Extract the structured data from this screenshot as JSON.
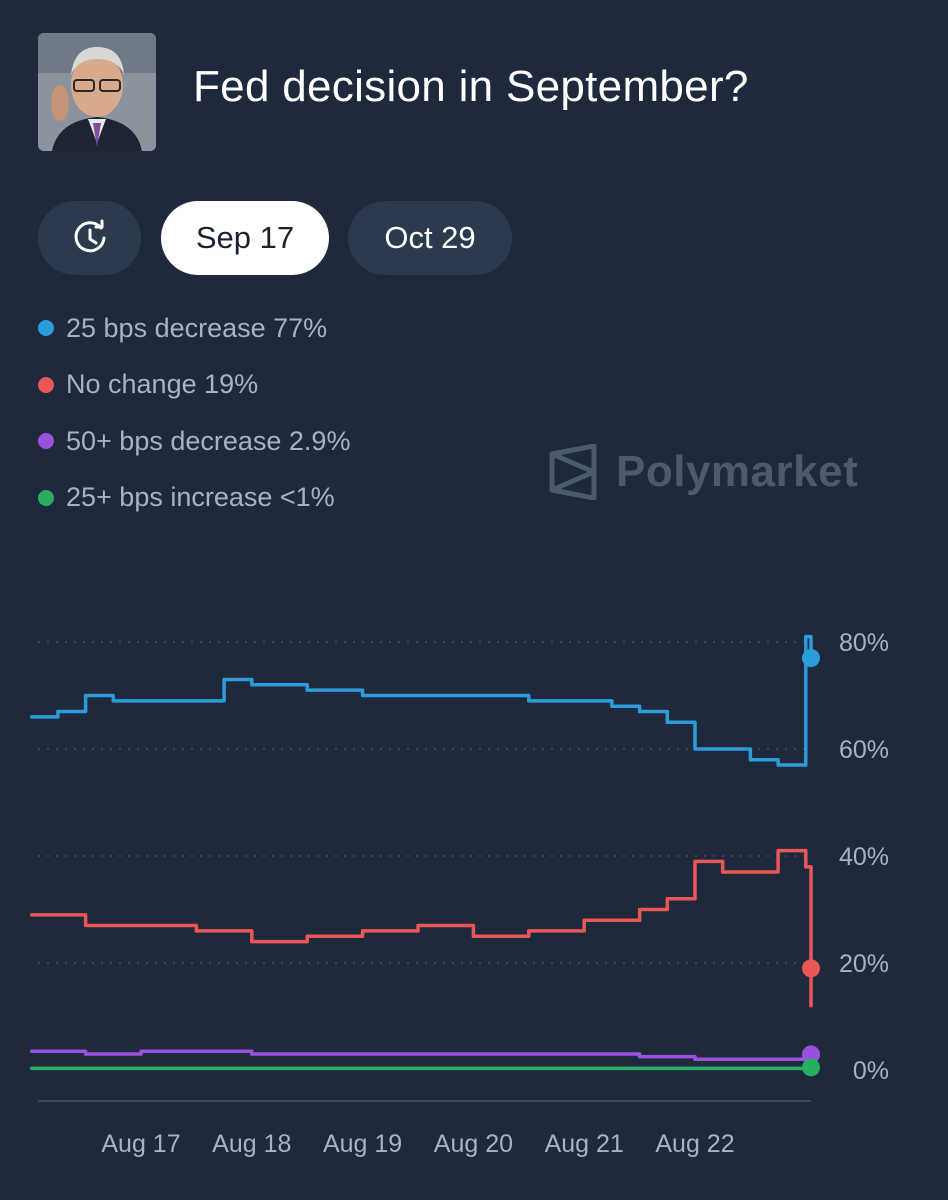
{
  "header": {
    "title": "Fed decision in September?",
    "avatar_icon": "person-photo"
  },
  "tabs": {
    "history_icon": "history-clock-icon",
    "active_tab": "Sep 17",
    "other_tab": "Oct 29"
  },
  "legend": [
    {
      "label": "25 bps decrease 77%",
      "color": "#2d9cdb"
    },
    {
      "label": "No change 19%",
      "color": "#eb5757"
    },
    {
      "label": "50+ bps decrease 2.9%",
      "color": "#9b51e0"
    },
    {
      "label": "25+ bps increase <1%",
      "color": "#27ae60"
    }
  ],
  "watermark": {
    "text": "Polymarket"
  },
  "chart_data": {
    "type": "line",
    "x_ticks": [
      "Aug 17",
      "Aug 18",
      "Aug 19",
      "Aug 20",
      "Aug 21",
      "Aug 22"
    ],
    "y_ticks": [
      "0%",
      "20%",
      "40%",
      "60%",
      "80%"
    ],
    "ylim": [
      0,
      80
    ],
    "grid": "dotted horizontal",
    "series": [
      {
        "name": "25 bps decrease",
        "color": "#2d9cdb",
        "x": [
          "Aug 16",
          "Aug 16 06:00",
          "Aug 16 12:00",
          "Aug 16 18:00",
          "Aug 17",
          "Aug 17 12:00",
          "Aug 17 18:00",
          "Aug 18",
          "Aug 18 12:00",
          "Aug 19",
          "Aug 19 12:00",
          "Aug 20",
          "Aug 20 12:00",
          "Aug 21",
          "Aug 21 06:00",
          "Aug 21 12:00",
          "Aug 21 18:00",
          "Aug 22",
          "Aug 22 06:00",
          "Aug 22 12:00",
          "Aug 22 18:00",
          "Aug 23",
          "Aug 23 03:00",
          "Aug 23 06:00",
          "Aug 23 09:00"
        ],
        "values": [
          66,
          67,
          70,
          69,
          69,
          69,
          73,
          72,
          71,
          70,
          70,
          70,
          69,
          69,
          68,
          67,
          65,
          60,
          60,
          58,
          57,
          81,
          79,
          78,
          77
        ]
      },
      {
        "name": "No change",
        "color": "#eb5757",
        "x": [
          "Aug 16",
          "Aug 16 08:00",
          "Aug 16 12:00",
          "Aug 17",
          "Aug 17 12:00",
          "Aug 18",
          "Aug 18 12:00",
          "Aug 19",
          "Aug 19 12:00",
          "Aug 20",
          "Aug 20 12:00",
          "Aug 21",
          "Aug 21 06:00",
          "Aug 21 12:00",
          "Aug 21 18:00",
          "Aug 22",
          "Aug 22 06:00",
          "Aug 22 12:00",
          "Aug 22 18:00",
          "Aug 23",
          "Aug 23 03:00",
          "Aug 23 06:00",
          "Aug 23 09:00"
        ],
        "values": [
          29,
          29,
          27,
          27,
          26,
          24,
          25,
          26,
          27,
          25,
          26,
          28,
          28,
          30,
          32,
          39,
          37,
          37,
          41,
          38,
          12,
          15,
          19
        ]
      },
      {
        "name": "50+ bps decrease",
        "color": "#9b51e0",
        "x": [
          "Aug 16",
          "Aug 16 12:00",
          "Aug 17",
          "Aug 17 12:00",
          "Aug 18",
          "Aug 19",
          "Aug 20",
          "Aug 21",
          "Aug 21 12:00",
          "Aug 22",
          "Aug 22 12:00",
          "Aug 23",
          "Aug 23 03:00",
          "Aug 23 06:00",
          "Aug 23 09:00"
        ],
        "values": [
          3.5,
          3,
          3.5,
          3.5,
          3,
          3,
          3,
          3,
          2.5,
          2,
          2,
          2,
          4,
          3,
          2.9
        ]
      },
      {
        "name": "25+ bps increase",
        "color": "#27ae60",
        "x": [
          "Aug 16",
          "Aug 18",
          "Aug 20",
          "Aug 22",
          "Aug 23",
          "Aug 23 09:00"
        ],
        "values": [
          0.3,
          0.3,
          0.3,
          0.3,
          0.8,
          0.5
        ]
      }
    ]
  }
}
